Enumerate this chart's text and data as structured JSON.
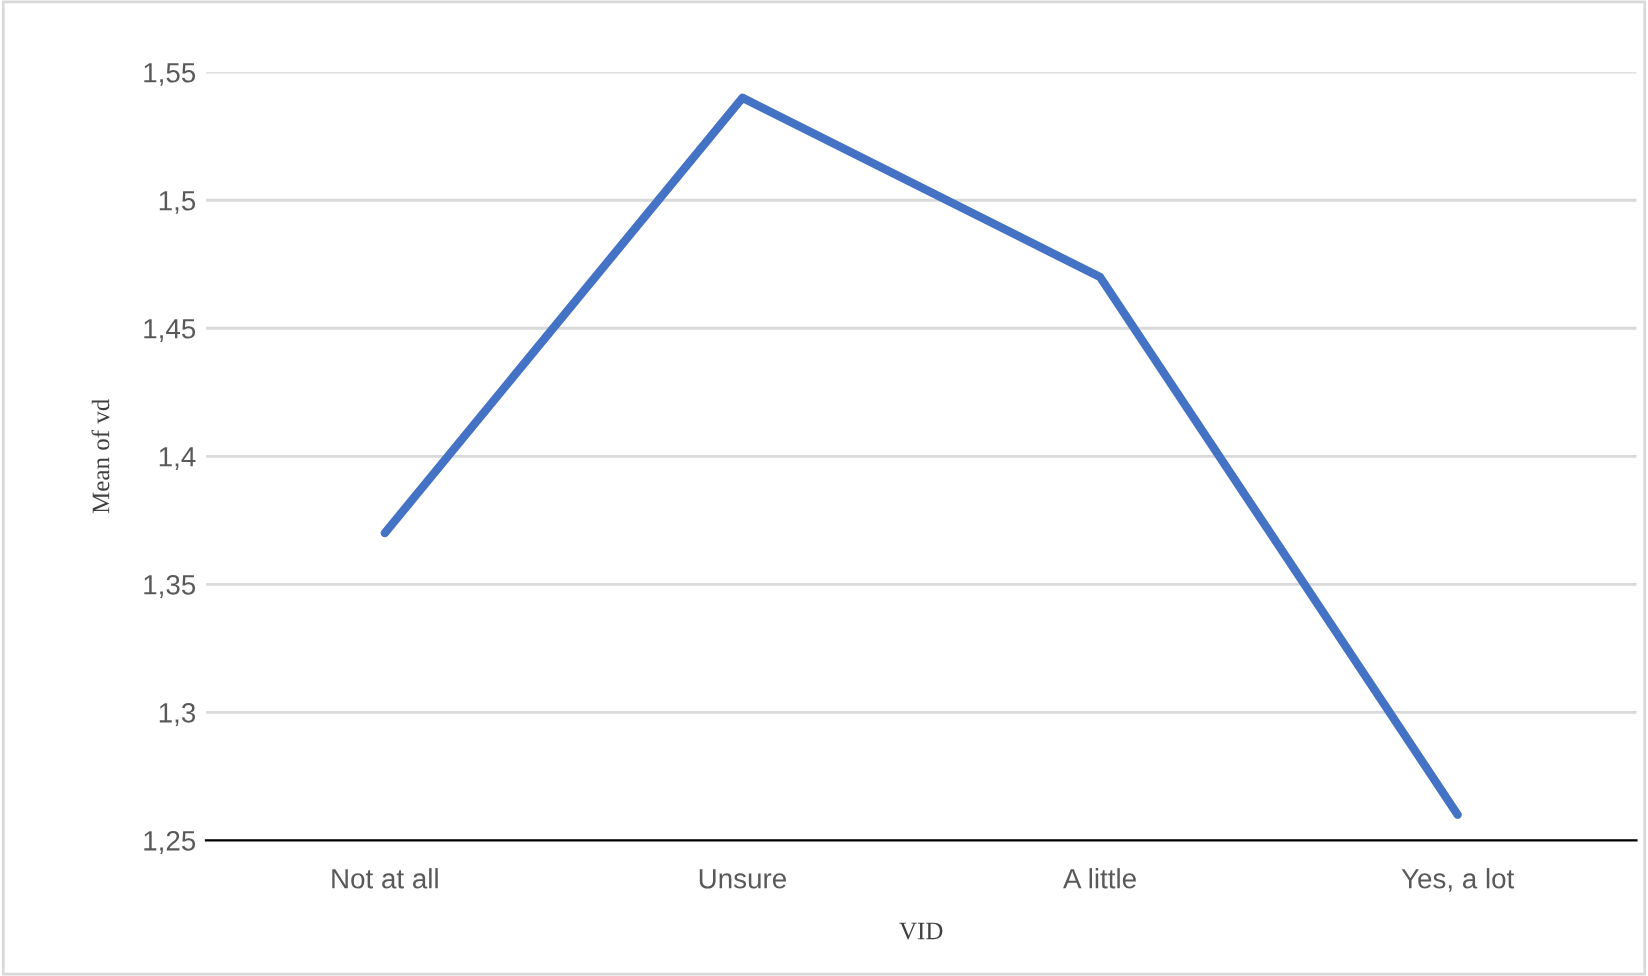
{
  "chart_data": {
    "type": "line",
    "xlabel": "VID",
    "ylabel": "Mean of vd",
    "categories": [
      "Not at all",
      "Unsure",
      "A little",
      "Yes, a lot"
    ],
    "series": [
      {
        "color": "#4472c4",
        "values": [
          1.37,
          1.54,
          1.47,
          1.26
        ]
      }
    ],
    "ylim": [
      1.25,
      1.55
    ],
    "yticks": [
      {
        "value": 1.25,
        "label": "1,25"
      },
      {
        "value": 1.3,
        "label": "1,3"
      },
      {
        "value": 1.35,
        "label": "1,35"
      },
      {
        "value": 1.4,
        "label": "1,4"
      },
      {
        "value": 1.45,
        "label": "1,45"
      },
      {
        "value": 1.5,
        "label": "1,5"
      },
      {
        "value": 1.55,
        "label": "1,55"
      }
    ],
    "grid": "y",
    "marker": "none",
    "line_style": "solid"
  }
}
